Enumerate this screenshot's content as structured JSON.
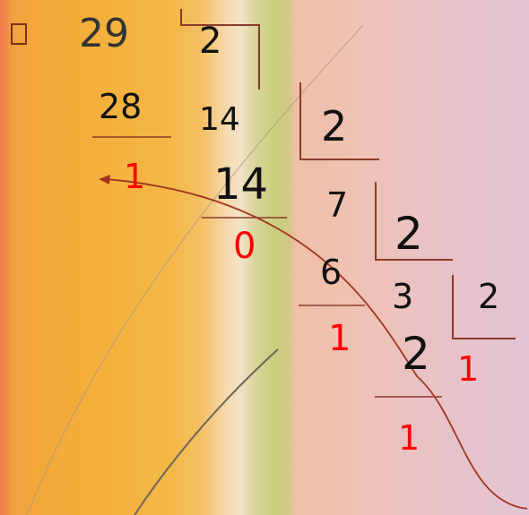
{
  "colors": {
    "dividend": "#111111",
    "remainder": "#ff0000",
    "bracket": "#8b3a2a",
    "arrow": "#a0361e"
  },
  "icons": {
    "bullet": "square-bullet-icon"
  },
  "steps": [
    {
      "dividend": "29",
      "divisor": "2",
      "subtracted": "28",
      "quotient": "14",
      "remainder": "1"
    },
    {
      "dividend": "14",
      "divisor": "2",
      "subtracted": "14",
      "quotient": "7",
      "remainder": "0"
    },
    {
      "dividend": "7",
      "divisor": "2",
      "subtracted": "6",
      "quotient": "3",
      "remainder": "1"
    },
    {
      "dividend": "3",
      "divisor": "2",
      "subtracted": "2",
      "quotient": "1",
      "remainder": "1"
    }
  ],
  "final_remainder": "1"
}
